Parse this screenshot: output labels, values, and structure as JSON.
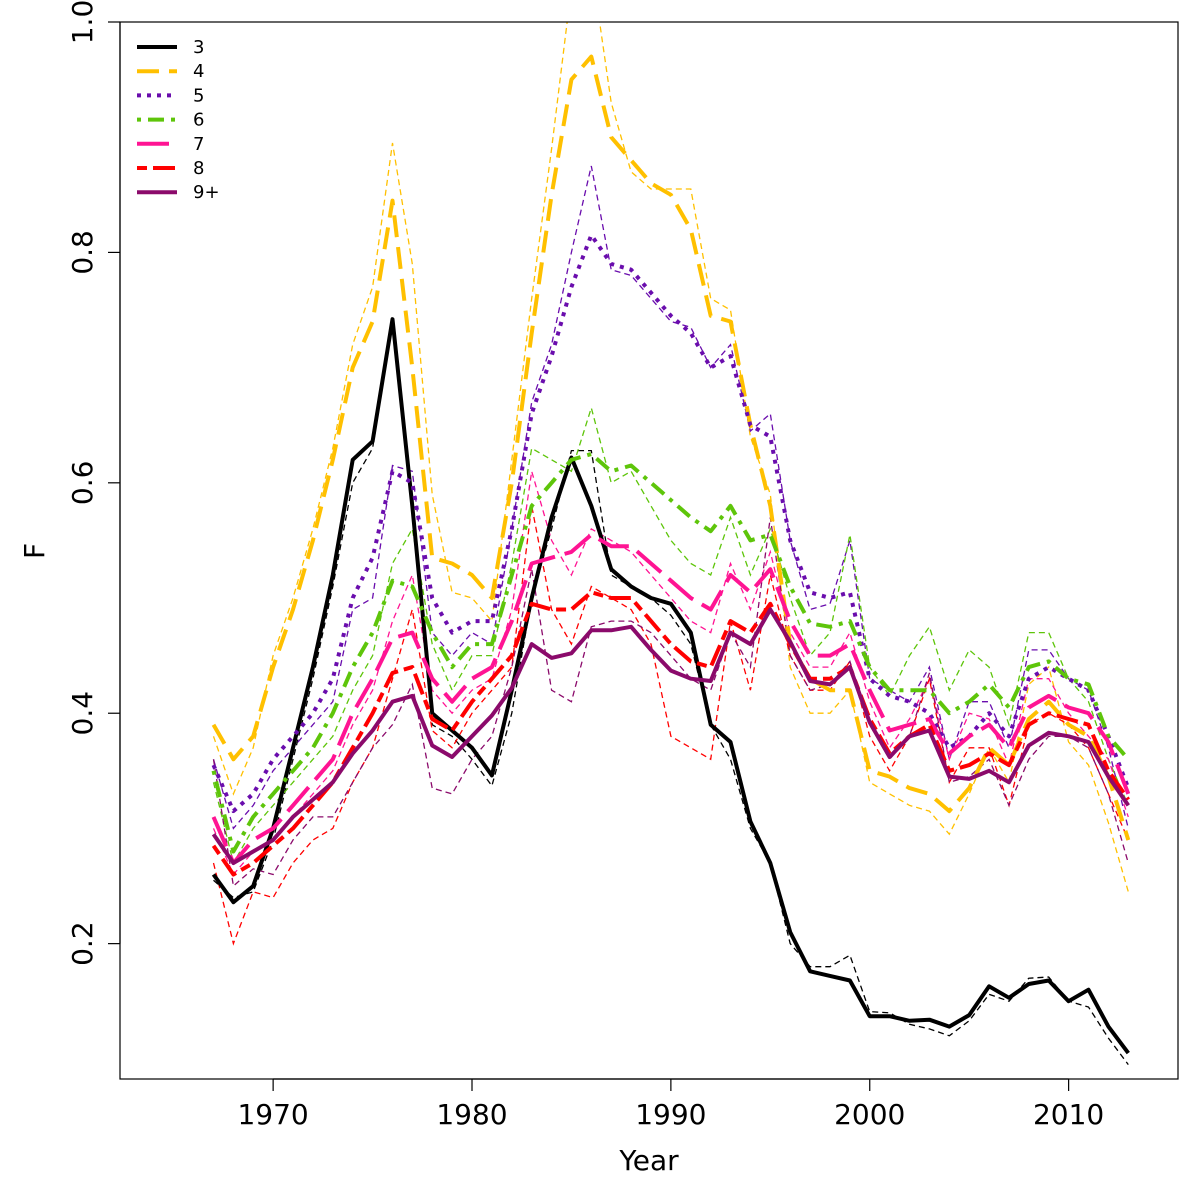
{
  "chart_data": {
    "type": "line",
    "xlabel": "Year",
    "ylabel": "F",
    "xlim": [
      1967,
      2013
    ],
    "ylim": [
      0.1,
      1.0
    ],
    "xticks": [
      1970,
      1980,
      1990,
      2000,
      2010
    ],
    "yticks": [
      0.2,
      0.4,
      0.6,
      0.8,
      1.0
    ],
    "legend_position": "top-left",
    "grid": false,
    "x": [
      1967,
      1968,
      1969,
      1970,
      1971,
      1972,
      1973,
      1974,
      1975,
      1976,
      1977,
      1978,
      1979,
      1980,
      1981,
      1982,
      1983,
      1984,
      1985,
      1986,
      1987,
      1988,
      1989,
      1990,
      1991,
      1992,
      1993,
      1994,
      1995,
      1996,
      1997,
      1998,
      1999,
      2000,
      2001,
      2002,
      2003,
      2004,
      2005,
      2006,
      2007,
      2008,
      2009,
      2010,
      2011,
      2012,
      2013
    ],
    "series": [
      {
        "name": "3",
        "color": "#000000",
        "dash": "solid",
        "values": [
          0.26,
          0.236,
          0.25,
          0.3,
          0.37,
          0.44,
          0.52,
          0.62,
          0.636,
          0.742,
          0.58,
          0.4,
          0.385,
          0.37,
          0.346,
          0.42,
          0.5,
          0.57,
          0.622,
          0.58,
          0.525,
          0.51,
          0.5,
          0.495,
          0.47,
          0.39,
          0.375,
          0.306,
          0.27,
          0.21,
          0.176,
          0.172,
          0.168,
          0.137,
          0.137,
          0.133,
          0.134,
          0.128,
          0.138,
          0.163,
          0.153,
          0.165,
          0.168,
          0.15,
          0.16,
          0.128,
          0.105
        ],
        "alt": [
          0.255,
          0.24,
          0.245,
          0.29,
          0.36,
          0.43,
          0.51,
          0.6,
          0.63,
          0.74,
          0.59,
          0.39,
          0.38,
          0.36,
          0.337,
          0.4,
          0.5,
          0.56,
          0.628,
          0.628,
          0.52,
          0.51,
          0.5,
          0.485,
          0.46,
          0.39,
          0.36,
          0.3,
          0.27,
          0.2,
          0.18,
          0.18,
          0.19,
          0.141,
          0.14,
          0.13,
          0.126,
          0.12,
          0.133,
          0.156,
          0.15,
          0.17,
          0.171,
          0.15,
          0.145,
          0.118,
          0.095
        ]
      },
      {
        "name": "4",
        "color": "#ffc000",
        "dash": "dash",
        "values": [
          0.39,
          0.36,
          0.38,
          0.44,
          0.49,
          0.55,
          0.62,
          0.7,
          0.74,
          0.845,
          0.7,
          0.535,
          0.53,
          0.52,
          0.5,
          0.6,
          0.73,
          0.85,
          0.95,
          0.97,
          0.9,
          0.88,
          0.86,
          0.85,
          0.82,
          0.745,
          0.74,
          0.65,
          0.58,
          0.46,
          0.43,
          0.42,
          0.42,
          0.35,
          0.345,
          0.335,
          0.33,
          0.315,
          0.335,
          0.37,
          0.355,
          0.395,
          0.41,
          0.39,
          0.38,
          0.345,
          0.29
        ],
        "alt": [
          0.38,
          0.33,
          0.37,
          0.45,
          0.5,
          0.56,
          0.63,
          0.72,
          0.77,
          0.895,
          0.79,
          0.59,
          0.505,
          0.5,
          0.48,
          0.62,
          0.76,
          0.89,
          1.03,
          1.05,
          0.93,
          0.87,
          0.855,
          0.855,
          0.855,
          0.76,
          0.75,
          0.64,
          0.59,
          0.44,
          0.4,
          0.4,
          0.42,
          0.34,
          0.33,
          0.32,
          0.315,
          0.295,
          0.33,
          0.37,
          0.34,
          0.425,
          0.44,
          0.375,
          0.355,
          0.305,
          0.245
        ]
      },
      {
        "name": "5",
        "color": "#6a0dad",
        "dash": "dot",
        "values": [
          0.355,
          0.315,
          0.33,
          0.36,
          0.38,
          0.4,
          0.43,
          0.5,
          0.535,
          0.61,
          0.6,
          0.5,
          0.47,
          0.48,
          0.48,
          0.56,
          0.66,
          0.71,
          0.77,
          0.815,
          0.79,
          0.785,
          0.765,
          0.745,
          0.73,
          0.7,
          0.71,
          0.65,
          0.64,
          0.55,
          0.505,
          0.5,
          0.505,
          0.43,
          0.415,
          0.41,
          0.4,
          0.37,
          0.38,
          0.4,
          0.38,
          0.43,
          0.44,
          0.43,
          0.42,
          0.38,
          0.335
        ],
        "alt": [
          0.36,
          0.3,
          0.32,
          0.35,
          0.37,
          0.39,
          0.41,
          0.49,
          0.5,
          0.615,
          0.61,
          0.47,
          0.45,
          0.47,
          0.46,
          0.56,
          0.67,
          0.72,
          0.8,
          0.875,
          0.785,
          0.78,
          0.76,
          0.74,
          0.735,
          0.7,
          0.72,
          0.645,
          0.66,
          0.55,
          0.49,
          0.495,
          0.55,
          0.43,
          0.42,
          0.41,
          0.44,
          0.36,
          0.41,
          0.41,
          0.37,
          0.455,
          0.455,
          0.43,
          0.42,
          0.37,
          0.3
        ]
      },
      {
        "name": "6",
        "color": "#5ec50a",
        "dash": "dashdot",
        "values": [
          0.35,
          0.28,
          0.31,
          0.33,
          0.35,
          0.37,
          0.4,
          0.44,
          0.47,
          0.515,
          0.51,
          0.47,
          0.44,
          0.46,
          0.46,
          0.52,
          0.58,
          0.6,
          0.62,
          0.625,
          0.61,
          0.615,
          0.6,
          0.585,
          0.57,
          0.558,
          0.58,
          0.55,
          0.555,
          0.51,
          0.478,
          0.475,
          0.48,
          0.44,
          0.42,
          0.42,
          0.42,
          0.4,
          0.41,
          0.425,
          0.405,
          0.44,
          0.445,
          0.43,
          0.425,
          0.38,
          0.36
        ],
        "alt": [
          0.34,
          0.27,
          0.3,
          0.32,
          0.34,
          0.36,
          0.38,
          0.42,
          0.45,
          0.53,
          0.56,
          0.46,
          0.42,
          0.45,
          0.45,
          0.53,
          0.63,
          0.62,
          0.61,
          0.665,
          0.6,
          0.61,
          0.58,
          0.55,
          0.53,
          0.52,
          0.57,
          0.52,
          0.56,
          0.5,
          0.45,
          0.47,
          0.555,
          0.44,
          0.415,
          0.45,
          0.475,
          0.42,
          0.455,
          0.44,
          0.39,
          0.47,
          0.47,
          0.43,
          0.41,
          0.36,
          0.32
        ]
      },
      {
        "name": "7",
        "color": "#ff1493",
        "dash": "longdash",
        "values": [
          0.31,
          0.27,
          0.29,
          0.3,
          0.32,
          0.34,
          0.36,
          0.4,
          0.43,
          0.465,
          0.47,
          0.43,
          0.41,
          0.43,
          0.44,
          0.48,
          0.53,
          0.535,
          0.54,
          0.555,
          0.545,
          0.545,
          0.53,
          0.515,
          0.5,
          0.49,
          0.52,
          0.505,
          0.525,
          0.48,
          0.45,
          0.45,
          0.46,
          0.42,
          0.385,
          0.39,
          0.395,
          0.365,
          0.38,
          0.39,
          0.37,
          0.405,
          0.415,
          0.405,
          0.4,
          0.375,
          0.33
        ],
        "alt": [
          0.3,
          0.26,
          0.28,
          0.29,
          0.31,
          0.33,
          0.35,
          0.39,
          0.42,
          0.48,
          0.52,
          0.42,
          0.4,
          0.42,
          0.43,
          0.49,
          0.61,
          0.55,
          0.52,
          0.56,
          0.55,
          0.54,
          0.52,
          0.5,
          0.48,
          0.47,
          0.53,
          0.49,
          0.54,
          0.47,
          0.44,
          0.44,
          0.47,
          0.41,
          0.37,
          0.395,
          0.43,
          0.36,
          0.4,
          0.395,
          0.355,
          0.43,
          0.43,
          0.4,
          0.38,
          0.36,
          0.31
        ]
      },
      {
        "name": "8",
        "color": "#ff0000",
        "dash": "twodash",
        "values": [
          0.285,
          0.26,
          0.27,
          0.285,
          0.3,
          0.32,
          0.34,
          0.37,
          0.4,
          0.435,
          0.44,
          0.395,
          0.385,
          0.41,
          0.43,
          0.45,
          0.495,
          0.49,
          0.49,
          0.505,
          0.5,
          0.5,
          0.48,
          0.46,
          0.445,
          0.44,
          0.48,
          0.47,
          0.495,
          0.46,
          0.43,
          0.43,
          0.44,
          0.395,
          0.365,
          0.38,
          0.39,
          0.35,
          0.355,
          0.365,
          0.355,
          0.39,
          0.4,
          0.395,
          0.39,
          0.35,
          0.325
        ],
        "alt": [
          0.27,
          0.2,
          0.245,
          0.24,
          0.27,
          0.29,
          0.3,
          0.34,
          0.37,
          0.43,
          0.49,
          0.385,
          0.37,
          0.4,
          0.42,
          0.44,
          0.58,
          0.49,
          0.46,
          0.51,
          0.5,
          0.49,
          0.46,
          0.38,
          0.37,
          0.36,
          0.48,
          0.42,
          0.52,
          0.45,
          0.42,
          0.42,
          0.445,
          0.38,
          0.35,
          0.38,
          0.43,
          0.34,
          0.37,
          0.37,
          0.32,
          0.39,
          0.4,
          0.39,
          0.37,
          0.33,
          0.29
        ]
      },
      {
        "name": "9+",
        "color": "#8b0a6b",
        "dash": "solid",
        "values": [
          0.295,
          0.27,
          0.28,
          0.29,
          0.31,
          0.325,
          0.34,
          0.365,
          0.385,
          0.41,
          0.415,
          0.372,
          0.362,
          0.38,
          0.398,
          0.422,
          0.46,
          0.448,
          0.452,
          0.472,
          0.472,
          0.475,
          0.455,
          0.437,
          0.43,
          0.428,
          0.47,
          0.46,
          0.49,
          0.462,
          0.428,
          0.425,
          0.44,
          0.392,
          0.362,
          0.38,
          0.385,
          0.345,
          0.343,
          0.35,
          0.34,
          0.372,
          0.383,
          0.38,
          0.375,
          0.345,
          0.32
        ],
        "alt": [
          0.36,
          0.25,
          0.265,
          0.26,
          0.29,
          0.31,
          0.31,
          0.34,
          0.37,
          0.39,
          0.425,
          0.335,
          0.33,
          0.36,
          0.38,
          0.44,
          0.525,
          0.42,
          0.41,
          0.475,
          0.48,
          0.48,
          0.47,
          0.45,
          0.43,
          0.42,
          0.47,
          0.44,
          0.57,
          0.45,
          0.42,
          0.425,
          0.445,
          0.39,
          0.36,
          0.38,
          0.435,
          0.34,
          0.345,
          0.36,
          0.32,
          0.36,
          0.38,
          0.38,
          0.37,
          0.33,
          0.27
        ]
      }
    ]
  }
}
